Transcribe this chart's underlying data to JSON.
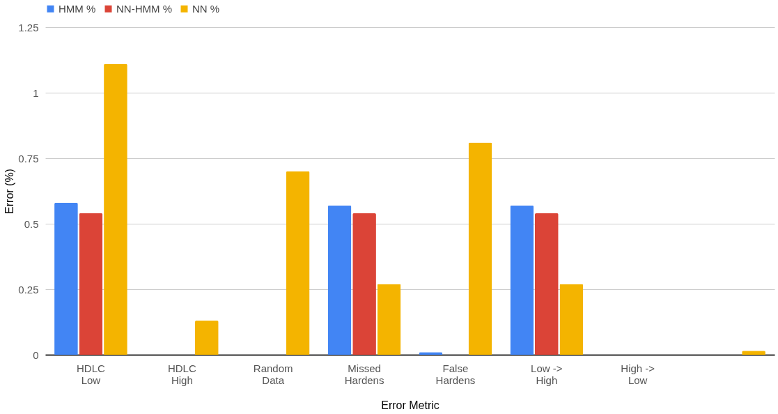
{
  "chart_data": {
    "type": "bar",
    "xlabel": "Error Metric",
    "ylabel": "Error (%)",
    "categories": [
      "HDLC Low",
      "HDLC High",
      "Random Data",
      "Missed Hardens",
      "False Hardens",
      "Low -> High",
      "High -> Low",
      null
    ],
    "series": [
      {
        "name": "HMM %",
        "color": "#4285f4",
        "values": [
          0.58,
          0,
          0,
          0.57,
          0.01,
          0.57,
          0,
          0
        ]
      },
      {
        "name": "NN-HMM %",
        "color": "#db4437",
        "values": [
          0.54,
          0,
          0,
          0.54,
          0,
          0.54,
          0,
          0
        ]
      },
      {
        "name": "NN %",
        "color": "#f4b400",
        "values": [
          1.11,
          0.13,
          0.7,
          0.27,
          0.81,
          0.27,
          0,
          0.015
        ]
      }
    ],
    "ylim": [
      0,
      1.25
    ],
    "yticks": [
      0,
      0.25,
      0.5,
      0.75,
      1,
      1.25
    ],
    "grid": "y",
    "legend": "top"
  }
}
